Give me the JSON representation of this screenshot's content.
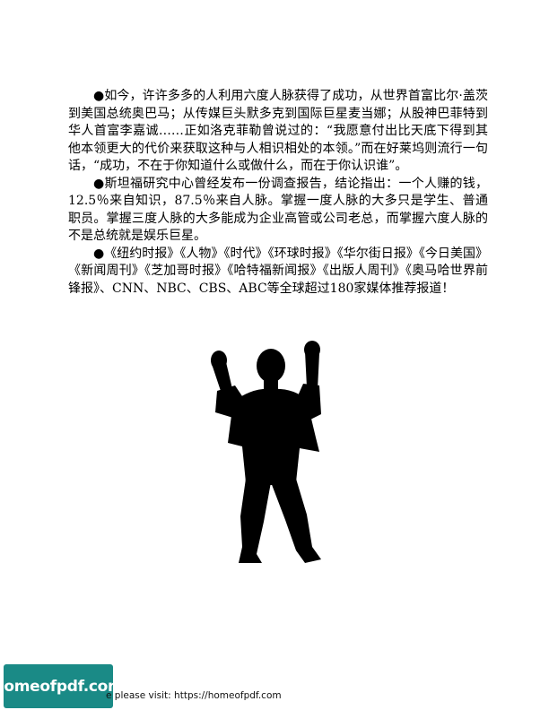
{
  "paragraphs": [
    "●如今，许许多多的人利用六度人脉获得了成功，从世界首富比尔·盖茨到美国总统奥巴马；从传媒巨头默多克到国际巨星麦当娜；从股神巴菲特到华人首富李嘉诚……正如洛克菲勒曾说过的：“我愿意付出比天底下得到其他本领更大的代价来获取这种与人相识相处的本领。”而在好莱坞则流行一句话，“成功，不在于你知道什么或做什么，而在于你认识谁”。",
    "●斯坦福研究中心曾经发布一份调查报告，结论指出：一个人赚的钱，12.5％来自知识，87.5％来自人脉。掌握一度人脉的大多只是学生、普通职员。掌握三度人脉的大多能成为企业高管或公司老总，而掌握六度人脉的不是总统就是娱乐巨星。",
    "●《纽约时报》《人物》《时代》《环球时报》《华尔街日报》《今日美国》《新闻周刊》《芝加哥时报》《哈特福新闻报》《出版人周刊》《奥马哈世界前锋报》、CNN、NBC、CBS、ABC等全球超过180家媒体推荐报道！"
  ],
  "figure": {
    "icon": "cheering-man-silhouette-icon",
    "color": "#000000"
  },
  "footer": {
    "text": "e please visit: https://homeofpdf.com",
    "logo_text": "homeofpdf.com",
    "logo_color": "#1a8a86"
  }
}
